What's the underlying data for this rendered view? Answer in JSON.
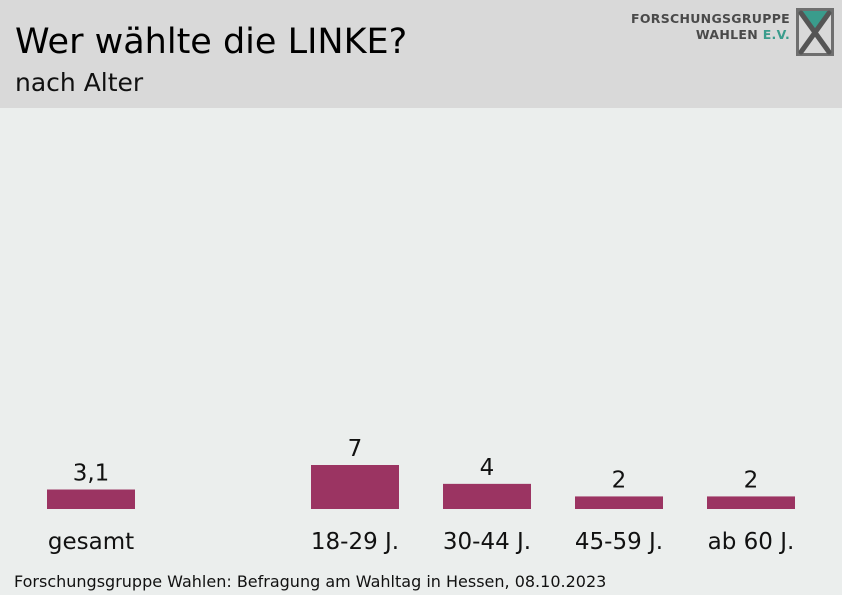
{
  "header": {
    "title": "Wer wählte die LINKE?",
    "subtitle": "nach Alter"
  },
  "logo": {
    "line1": "FORSCHUNGSGRUPPE",
    "line2": "WAHLEN",
    "line2_suffix": "E.V.",
    "icon": "fgw-x-logo-icon"
  },
  "footer": {
    "source": "Forschungsgruppe Wahlen: Befragung am Wahltag in Hessen, 08.10.2023"
  },
  "colors": {
    "bar": "#9b3462",
    "header_bg": "#d9d9d9",
    "page_bg": "#ebeeed",
    "logo_accent": "#3a9c8c"
  },
  "chart_data": {
    "type": "bar",
    "categories": [
      "gesamt",
      "18-29 J.",
      "30-44 J.",
      "45-59 J.",
      "ab 60 J."
    ],
    "values": [
      3.1,
      7,
      4,
      2,
      2
    ],
    "value_labels": [
      "3,1",
      "7",
      "4",
      "2",
      "2"
    ],
    "title": "Wer wählte die LINKE?",
    "subtitle": "nach Alter",
    "xlabel": "",
    "ylabel": "",
    "ylim": [
      0,
      45
    ],
    "grid": false,
    "legend": "none"
  }
}
